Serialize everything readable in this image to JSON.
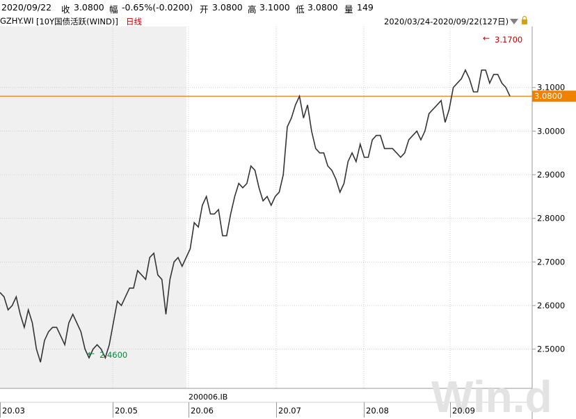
{
  "header": {
    "date": "2020/09/22",
    "close_label": "收",
    "close_value": "3.0800",
    "change_label": "幅",
    "change_value": "-0.65%(-0.0200)",
    "open_label": "开",
    "open_value": "3.0800",
    "high_label": "高",
    "high_value": "3.1000",
    "low_label": "低",
    "low_value": "3.0800",
    "volume_label": "量",
    "volume_value": "149"
  },
  "subheader": {
    "code": "GZHY.WI",
    "name": "[10Y国债活跃(WIND)]",
    "period": "日线",
    "range": "2020/03/24-2020/09/22(127日)"
  },
  "annotations": {
    "max_label": "3.1700",
    "min_label": "2.4600",
    "last_price_tag": "3.0800",
    "bond_code": "200006.IB",
    "watermark": "Win.d"
  },
  "colors": {
    "line": "#333333",
    "last_price_line": "#f08000",
    "grid": "#cccccc",
    "shade": "#f0f0f0",
    "max_label": "#c00000",
    "min_label": "#00893a",
    "arrow_icon": "#888888"
  },
  "chart_data": {
    "type": "line",
    "title": "",
    "xlabel": "",
    "ylabel": "",
    "x_tick_labels": [
      "20.03",
      "20.05",
      "20.06",
      "20.07",
      "20.08",
      "20.09"
    ],
    "y_tick_labels": [
      "2.5000",
      "2.6000",
      "2.7000",
      "2.8000",
      "2.9000",
      "3.0000",
      "3.1000"
    ],
    "ylim": [
      2.41,
      3.24
    ],
    "last_price": 3.08,
    "grid": true,
    "series": [
      {
        "values": [
          2.63,
          2.62,
          2.59,
          2.6,
          2.62,
          2.58,
          2.55,
          2.59,
          2.56,
          2.5,
          2.47,
          2.52,
          2.54,
          2.55,
          2.55,
          2.53,
          2.51,
          2.56,
          2.58,
          2.56,
          2.54,
          2.5,
          2.48,
          2.5,
          2.51,
          2.5,
          2.48,
          2.51,
          2.56,
          2.61,
          2.6,
          2.62,
          2.64,
          2.64,
          2.68,
          2.67,
          2.66,
          2.71,
          2.72,
          2.67,
          2.66,
          2.58,
          2.66,
          2.7,
          2.71,
          2.69,
          2.71,
          2.73,
          2.79,
          2.78,
          2.83,
          2.85,
          2.81,
          2.81,
          2.82,
          2.76,
          2.76,
          2.81,
          2.85,
          2.88,
          2.87,
          2.88,
          2.92,
          2.91,
          2.87,
          2.84,
          2.85,
          2.83,
          2.85,
          2.86,
          2.9,
          3.01,
          3.03,
          3.06,
          3.08,
          3.03,
          3.06,
          3.0,
          2.96,
          2.95,
          2.95,
          2.92,
          2.91,
          2.89,
          2.86,
          2.88,
          2.93,
          2.95,
          2.93,
          2.97,
          2.94,
          2.94,
          2.98,
          2.99,
          2.99,
          2.96,
          2.96,
          2.96,
          2.95,
          2.94,
          2.95,
          2.98,
          2.99,
          3.0,
          2.98,
          3.0,
          3.04,
          3.05,
          3.06,
          3.07,
          3.02,
          3.05,
          3.1,
          3.11,
          3.12,
          3.14,
          3.12,
          3.09,
          3.09,
          3.14,
          3.14,
          3.11,
          3.13,
          3.13,
          3.11,
          3.1,
          3.08
        ]
      }
    ]
  }
}
